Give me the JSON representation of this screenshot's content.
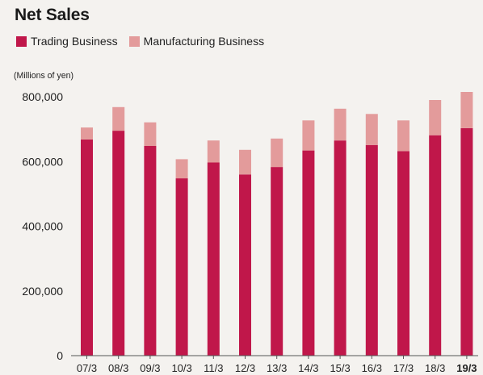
{
  "chart_data": {
    "type": "bar",
    "stacked": true,
    "title": "Net Sales",
    "unit_label": "(Millions of yen)",
    "categories": [
      "07/3",
      "08/3",
      "09/3",
      "10/3",
      "11/3",
      "12/3",
      "13/3",
      "14/3",
      "15/3",
      "16/3",
      "17/3",
      "18/3",
      "19/3"
    ],
    "highlighted_category": "19/3",
    "series": [
      {
        "name": "Trading Business",
        "color": "#c0174a",
        "values": [
          668000,
          695000,
          648000,
          548000,
          597000,
          560000,
          583000,
          634000,
          665000,
          651000,
          632000,
          681000,
          703000
        ]
      },
      {
        "name": "Manufacturing Business",
        "color": "#e39b9b",
        "values": [
          37000,
          73000,
          73000,
          59000,
          68000,
          76000,
          88000,
          93000,
          98000,
          96000,
          95000,
          109000,
          112000
        ]
      }
    ],
    "ylim": [
      0,
      800000
    ],
    "yticks": [
      0,
      200000,
      400000,
      600000,
      800000
    ],
    "ytick_labels": [
      "0",
      "200,000",
      "400,000",
      "600,000",
      "800,000"
    ],
    "grid": false,
    "legend_position": "top-left"
  }
}
